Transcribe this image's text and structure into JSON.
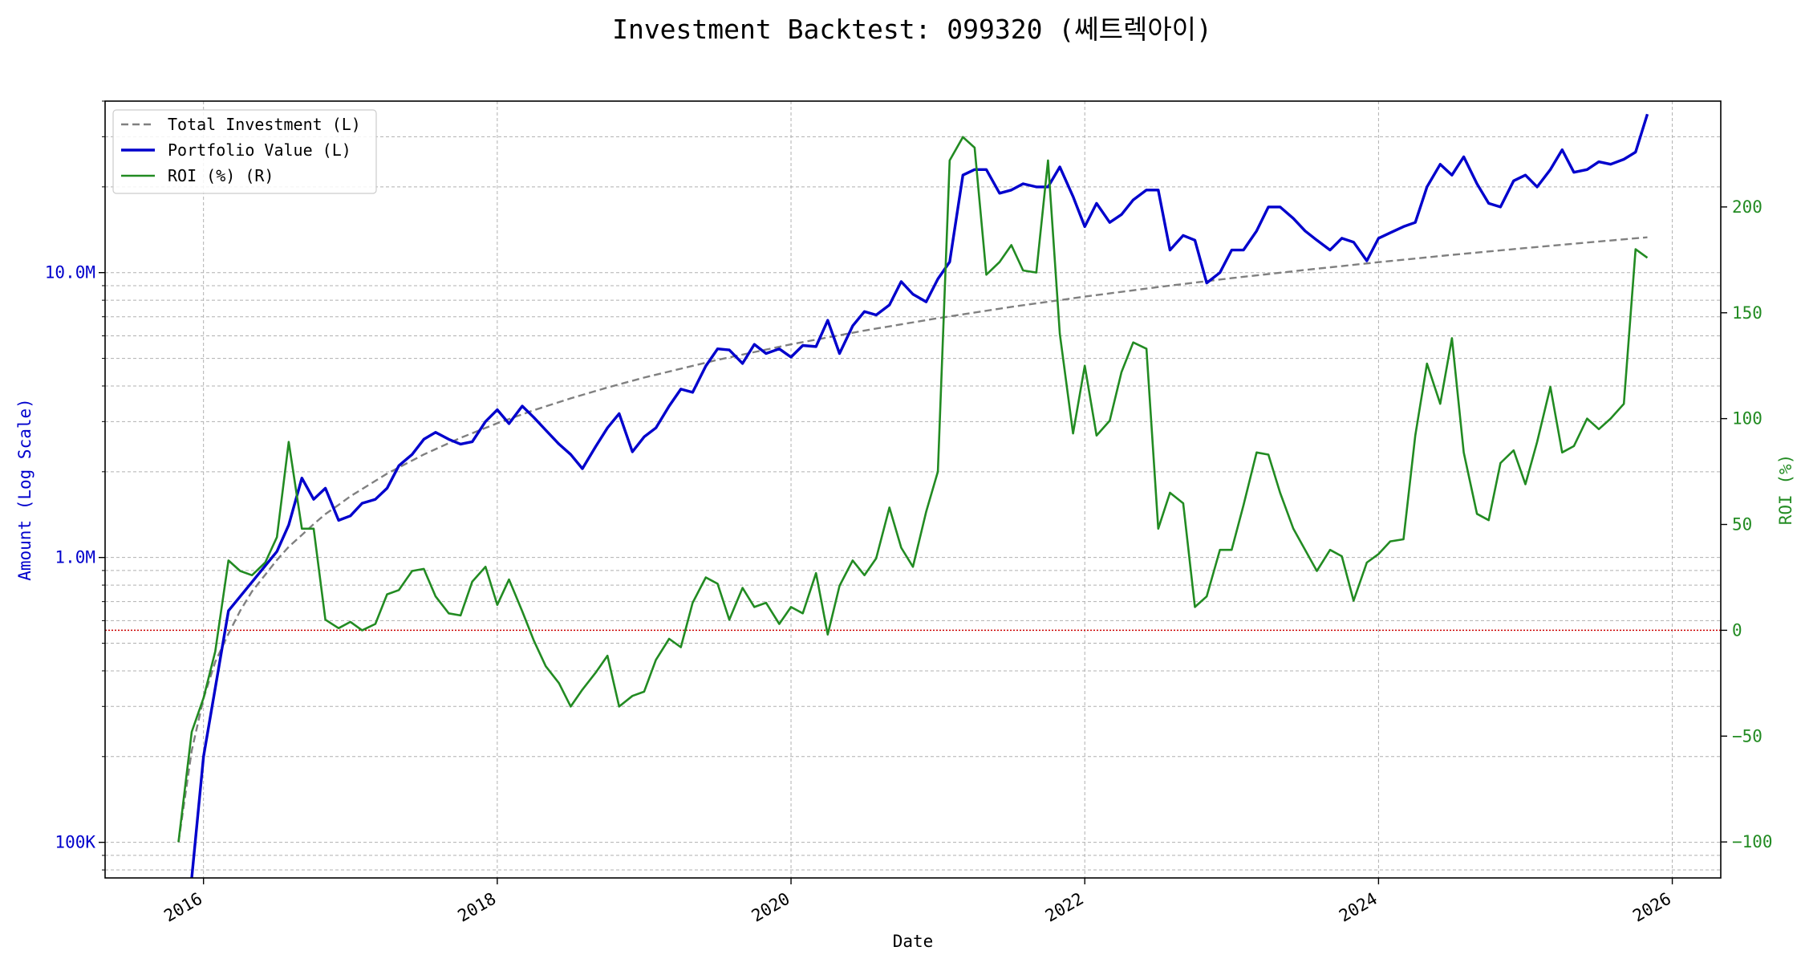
{
  "chart_data": {
    "type": "line",
    "title": "Investment Backtest: 099320 (쎄트렉아이)",
    "xlabel": "Date",
    "ylabel_left": "Amount (Log Scale)",
    "ylabel_right": "ROI (%)",
    "x_ticks": [
      "2016",
      "2018",
      "2020",
      "2022",
      "2024",
      "2026"
    ],
    "left_ticks": [
      {
        "value": 100000,
        "label": "100K"
      },
      {
        "value": 1000000,
        "label": "1.0M"
      },
      {
        "value": 10000000,
        "label": "10.0M"
      }
    ],
    "right_ticks": [
      {
        "value": -100,
        "label": "−100"
      },
      {
        "value": -50,
        "label": "−50"
      },
      {
        "value": 0,
        "label": "0"
      },
      {
        "value": 50,
        "label": "50"
      },
      {
        "value": 100,
        "label": "100"
      },
      {
        "value": 150,
        "label": "150"
      },
      {
        "value": 200,
        "label": "200"
      }
    ],
    "left_scale": "log",
    "left_range": [
      75000,
      40000000
    ],
    "right_range": [
      -117,
      250
    ],
    "x_range": [
      2015.33,
      2026.33
    ],
    "grid": true,
    "legend_position": "top-left",
    "zero_line_color": "#cc0000",
    "series": [
      {
        "name": "Total Investment (L)",
        "axis": "left",
        "color": "#808080",
        "style": "dashed",
        "x": [
          2015.83,
          2015.92,
          2016.0,
          2016.08,
          2016.17,
          2016.25,
          2016.33,
          2016.42,
          2016.5,
          2016.58,
          2016.67,
          2016.75,
          2016.83,
          2016.92,
          2017.0,
          2017.25,
          2017.5,
          2017.75,
          2018.0,
          2018.25,
          2018.5,
          2018.75,
          2019.0,
          2019.5,
          2020.0,
          2020.5,
          2021.0,
          2021.5,
          2022.0,
          2022.5,
          2023.0,
          2023.5,
          2024.0,
          2024.5,
          2025.0,
          2025.5,
          2025.83
        ],
        "values": [
          100000,
          210000,
          320000,
          430000,
          540000,
          650000,
          760000,
          870000,
          980000,
          1090000,
          1200000,
          1310000,
          1420000,
          1530000,
          1640000,
          1970000,
          2300000,
          2630000,
          2960000,
          3290000,
          3620000,
          3950000,
          4280000,
          4940000,
          5600000,
          6260000,
          6920000,
          7580000,
          8240000,
          8900000,
          9560000,
          10220000,
          10880000,
          11540000,
          12200000,
          12860000,
          13300000
        ]
      },
      {
        "name": "Portfolio Value (L)",
        "axis": "left",
        "color": "#0000cc",
        "style": "solid",
        "x": [
          2015.92,
          2016.0,
          2016.17,
          2016.33,
          2016.5,
          2016.58,
          2016.67,
          2016.75,
          2016.83,
          2016.92,
          2017.0,
          2017.08,
          2017.17,
          2017.25,
          2017.33,
          2017.42,
          2017.5,
          2017.58,
          2017.67,
          2017.75,
          2017.83,
          2017.92,
          2018.0,
          2018.08,
          2018.17,
          2018.25,
          2018.33,
          2018.42,
          2018.5,
          2018.58,
          2018.67,
          2018.75,
          2018.83,
          2018.92,
          2019.0,
          2019.08,
          2019.17,
          2019.25,
          2019.33,
          2019.42,
          2019.5,
          2019.58,
          2019.67,
          2019.75,
          2019.83,
          2019.92,
          2020.0,
          2020.08,
          2020.17,
          2020.25,
          2020.33,
          2020.42,
          2020.5,
          2020.58,
          2020.67,
          2020.75,
          2020.83,
          2020.92,
          2021.0,
          2021.08,
          2021.17,
          2021.25,
          2021.33,
          2021.42,
          2021.5,
          2021.58,
          2021.67,
          2021.75,
          2021.83,
          2021.92,
          2022.0,
          2022.08,
          2022.17,
          2022.25,
          2022.33,
          2022.42,
          2022.5,
          2022.58,
          2022.67,
          2022.75,
          2022.83,
          2022.92,
          2023.0,
          2023.08,
          2023.17,
          2023.25,
          2023.33,
          2023.42,
          2023.5,
          2023.58,
          2023.67,
          2023.75,
          2023.83,
          2023.92,
          2024.0,
          2024.08,
          2024.17,
          2024.25,
          2024.33,
          2024.42,
          2024.5,
          2024.58,
          2024.67,
          2024.75,
          2024.83,
          2024.92,
          2025.0,
          2025.08,
          2025.17,
          2025.25,
          2025.33,
          2025.42,
          2025.5,
          2025.58,
          2025.67,
          2025.75,
          2025.83
        ],
        "values": [
          75000,
          200000,
          650000,
          820000,
          1050000,
          1300000,
          1900000,
          1600000,
          1750000,
          1350000,
          1400000,
          1550000,
          1600000,
          1750000,
          2100000,
          2300000,
          2600000,
          2750000,
          2600000,
          2500000,
          2550000,
          3000000,
          3300000,
          2950000,
          3400000,
          3100000,
          2800000,
          2500000,
          2300000,
          2050000,
          2450000,
          2850000,
          3200000,
          2350000,
          2650000,
          2850000,
          3400000,
          3900000,
          3800000,
          4700000,
          5400000,
          5350000,
          4800000,
          5600000,
          5200000,
          5400000,
          5050000,
          5550000,
          5500000,
          6800000,
          5200000,
          6500000,
          7300000,
          7100000,
          7700000,
          9300000,
          8400000,
          7900000,
          9500000,
          10900000,
          22000000,
          23000000,
          23000000,
          19000000,
          19500000,
          20500000,
          20000000,
          20000000,
          23500000,
          18500000,
          14500000,
          17500000,
          15000000,
          16000000,
          18000000,
          19500000,
          19500000,
          12000000,
          13500000,
          13000000,
          9200000,
          10000000,
          12000000,
          12000000,
          14000000,
          17000000,
          17000000,
          15500000,
          14000000,
          13000000,
          12000000,
          13200000,
          12800000,
          11000000,
          13200000,
          13800000,
          14500000,
          15000000,
          20000000,
          24000000,
          22000000,
          25500000,
          20500000,
          17500000,
          17000000,
          21000000,
          22000000,
          20000000,
          23000000,
          27000000,
          22500000,
          23000000,
          24500000,
          24000000,
          25000000,
          26500000,
          36000000
        ]
      },
      {
        "name": "ROI (%) (R)",
        "axis": "right",
        "color": "#228b22",
        "style": "solid",
        "x": [
          2015.83,
          2015.92,
          2016.0,
          2016.08,
          2016.17,
          2016.25,
          2016.33,
          2016.42,
          2016.5,
          2016.58,
          2016.67,
          2016.75,
          2016.83,
          2016.92,
          2017.0,
          2017.08,
          2017.17,
          2017.25,
          2017.33,
          2017.42,
          2017.5,
          2017.58,
          2017.67,
          2017.75,
          2017.83,
          2017.92,
          2018.0,
          2018.08,
          2018.17,
          2018.25,
          2018.33,
          2018.42,
          2018.5,
          2018.58,
          2018.67,
          2018.75,
          2018.83,
          2018.92,
          2019.0,
          2019.08,
          2019.17,
          2019.25,
          2019.33,
          2019.42,
          2019.5,
          2019.58,
          2019.67,
          2019.75,
          2019.83,
          2019.92,
          2020.0,
          2020.08,
          2020.17,
          2020.25,
          2020.33,
          2020.42,
          2020.5,
          2020.58,
          2020.67,
          2020.75,
          2020.83,
          2020.92,
          2021.0,
          2021.08,
          2021.17,
          2021.25,
          2021.33,
          2021.42,
          2021.5,
          2021.58,
          2021.67,
          2021.75,
          2021.83,
          2021.92,
          2022.0,
          2022.08,
          2022.17,
          2022.25,
          2022.33,
          2022.42,
          2022.5,
          2022.58,
          2022.67,
          2022.75,
          2022.83,
          2022.92,
          2023.0,
          2023.08,
          2023.17,
          2023.25,
          2023.33,
          2023.42,
          2023.5,
          2023.58,
          2023.67,
          2023.75,
          2023.83,
          2023.92,
          2024.0,
          2024.08,
          2024.17,
          2024.25,
          2024.33,
          2024.42,
          2024.5,
          2024.58,
          2024.67,
          2024.75,
          2024.83,
          2024.92,
          2025.0,
          2025.08,
          2025.17,
          2025.25,
          2025.33,
          2025.42,
          2025.5,
          2025.58,
          2025.67,
          2025.75,
          2025.83
        ],
        "values": [
          -100,
          -48,
          -32,
          -10,
          33,
          28,
          26,
          32,
          44,
          89,
          48,
          48,
          5,
          1,
          4,
          0,
          3,
          17,
          19,
          28,
          29,
          16,
          8,
          7,
          23,
          30,
          12,
          24,
          9,
          -5,
          -17,
          -25,
          -36,
          -28,
          -20,
          -12,
          -36,
          -31,
          -29,
          -14,
          -4,
          -8,
          13,
          25,
          22,
          5,
          20,
          11,
          13,
          3,
          11,
          8,
          27,
          -2,
          21,
          33,
          26,
          34,
          58,
          39,
          30,
          56,
          75,
          222,
          233,
          228,
          168,
          174,
          182,
          170,
          169,
          222,
          140,
          93,
          125,
          92,
          99,
          122,
          136,
          133,
          48,
          65,
          60,
          11,
          16,
          38,
          38,
          59,
          84,
          83,
          65,
          48,
          38,
          28,
          38,
          35,
          14,
          32,
          36,
          42,
          43,
          92,
          126,
          107,
          138,
          84,
          55,
          52,
          79,
          85,
          69,
          89,
          115,
          84,
          87,
          100,
          95,
          100,
          107,
          180,
          176
        ]
      }
    ]
  }
}
